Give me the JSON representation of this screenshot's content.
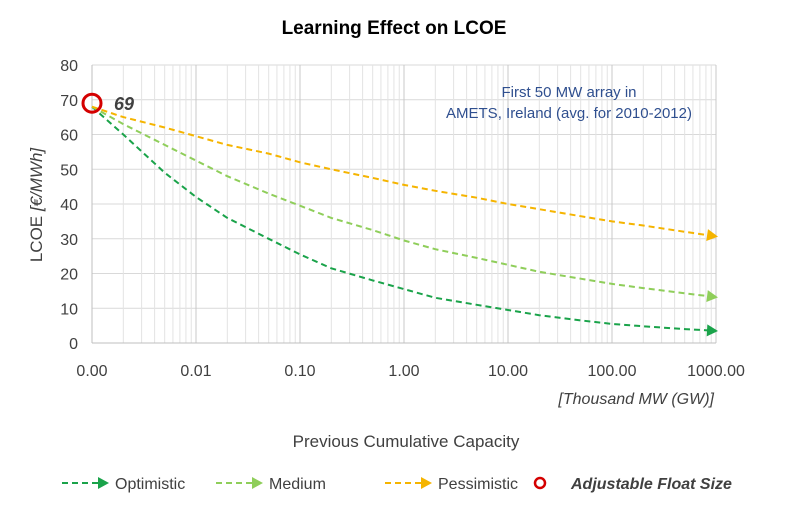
{
  "chart_data": {
    "type": "line",
    "title": "Learning Effect on LCOE",
    "ylabel_plain": "LCOE ",
    "ylabel_italic": "[€/MWh]",
    "xunit": "[Thousand MW (GW)]",
    "xlabel": "Previous Cumulative Capacity",
    "x_scale": "log",
    "x_ticks": [
      "0.00",
      "0.01",
      "0.10",
      "1.00",
      "10.00",
      "100.00",
      "1000.00"
    ],
    "x_tick_values": [
      0.001,
      0.01,
      0.1,
      1,
      10,
      100,
      1000
    ],
    "y_ticks": [
      "0",
      "10",
      "20",
      "30",
      "40",
      "50",
      "60",
      "70",
      "80"
    ],
    "ylim": [
      0,
      80
    ],
    "grid": true,
    "annotation": [
      "First 50 MW array in",
      "AMETS, Ireland (avg. for 2010-2012)"
    ],
    "start_point": {
      "x": 0.001,
      "y": 69,
      "label": "69"
    },
    "series": [
      {
        "name": "Optimistic",
        "color": "#1aa34a",
        "x": [
          0.001,
          0.002,
          0.005,
          0.01,
          0.02,
          0.05,
          0.1,
          0.2,
          0.5,
          1,
          2,
          5,
          10,
          20,
          50,
          100,
          200,
          500,
          1000
        ],
        "y": [
          68,
          60,
          49,
          42,
          36,
          30,
          25.5,
          21.5,
          18,
          15.5,
          13,
          11,
          9.5,
          8,
          6.5,
          5.5,
          4.8,
          4,
          3.5
        ]
      },
      {
        "name": "Medium",
        "color": "#8fce5a",
        "x": [
          0.001,
          0.002,
          0.005,
          0.01,
          0.02,
          0.05,
          0.1,
          0.2,
          0.5,
          1,
          2,
          5,
          10,
          20,
          50,
          100,
          200,
          500,
          1000
        ],
        "y": [
          68,
          63,
          57,
          52.5,
          48,
          43,
          39.5,
          36,
          32.5,
          29.5,
          27,
          24.5,
          22.5,
          20.5,
          18.5,
          17,
          15.8,
          14.3,
          13.2
        ]
      },
      {
        "name": "Pessimistic",
        "color": "#f5b400",
        "x": [
          0.001,
          0.002,
          0.005,
          0.01,
          0.02,
          0.05,
          0.1,
          0.2,
          0.5,
          1,
          2,
          5,
          10,
          20,
          50,
          100,
          200,
          500,
          1000
        ],
        "y": [
          68,
          65,
          62,
          59.5,
          57,
          54.5,
          52,
          50,
          47.5,
          45.5,
          43.8,
          41.8,
          40,
          38.5,
          36.5,
          35,
          33.8,
          32,
          30.7
        ]
      }
    ],
    "legend": [
      {
        "label": "Optimistic",
        "color": "#1aa34a",
        "kind": "line"
      },
      {
        "label": "Medium",
        "color": "#8fce5a",
        "kind": "line"
      },
      {
        "label": "Pessimistic",
        "color": "#f5b400",
        "kind": "line"
      },
      {
        "label": "Adjustable Float Size",
        "color": "#d40000",
        "kind": "circle"
      }
    ],
    "legend_position": "bottom"
  }
}
